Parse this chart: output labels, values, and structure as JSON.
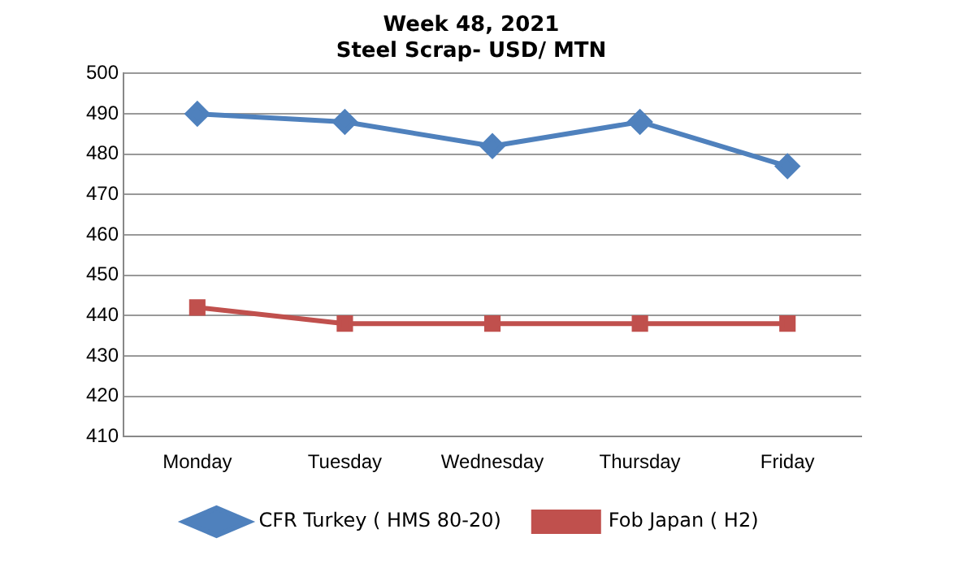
{
  "chart_data": {
    "type": "line",
    "title": "Week 48, 2021",
    "subtitle": "Steel Scrap- USD/ MTN",
    "categories": [
      "Monday",
      "Tuesday",
      "Wednesday",
      "Thursday",
      "Friday"
    ],
    "series": [
      {
        "name": "CFR Turkey ( HMS 80-20)",
        "color": "#4f81bd",
        "marker": "diamond",
        "values": [
          490,
          488,
          482,
          488,
          477
        ]
      },
      {
        "name": "Fob Japan ( H2)",
        "color": "#c0504d",
        "marker": "square",
        "values": [
          442,
          438,
          438,
          438,
          438
        ]
      }
    ],
    "ylim": [
      410,
      500
    ],
    "yticks": [
      410,
      420,
      430,
      440,
      450,
      460,
      470,
      480,
      490,
      500
    ],
    "grid": "y",
    "legend": "bottom",
    "line_style": "solid"
  }
}
